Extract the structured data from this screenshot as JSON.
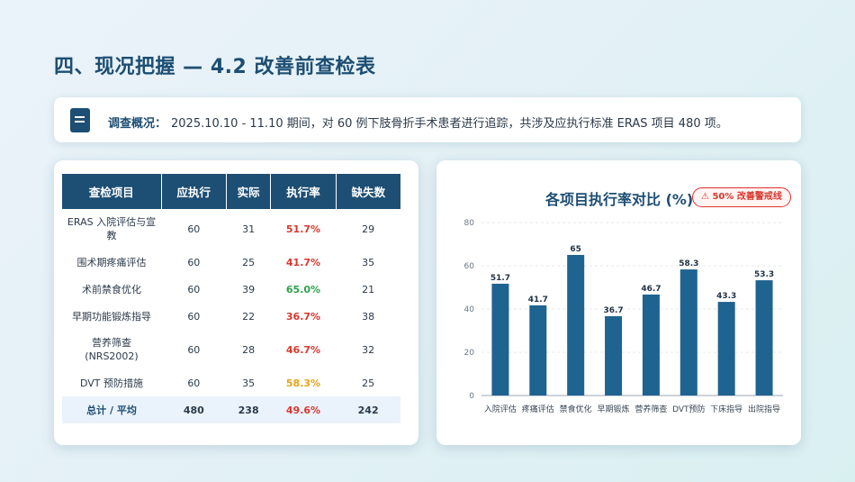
{
  "page": {
    "title": "四、现况把握 — 4.2  改善前查检表"
  },
  "summary": {
    "label": "调查概况：",
    "text": "2025.10.10 - 11.10  期间，对 60 例下肢骨折手术患者进行追踪，共涉及应执行标准 ERAS 项目  480  项。"
  },
  "table": {
    "headers": [
      "查检项目",
      "应执行",
      "实际",
      "执行率",
      "缺失数"
    ],
    "rows": [
      {
        "item": "ERAS 入院评估与宣教",
        "planned": "60",
        "actual": "31",
        "rate": "51.7%",
        "missing": "29",
        "rate_color": "#d9382e"
      },
      {
        "item": "围术期疼痛评估",
        "planned": "60",
        "actual": "25",
        "rate": "41.7%",
        "missing": "35",
        "rate_color": "#d9382e"
      },
      {
        "item": "术前禁食优化",
        "planned": "60",
        "actual": "39",
        "rate": "65.0%",
        "missing": "21",
        "rate_color": "#2fa34a"
      },
      {
        "item": "早期功能锻炼指导",
        "planned": "60",
        "actual": "22",
        "rate": "36.7%",
        "missing": "38",
        "rate_color": "#d9382e"
      },
      {
        "item": "营养筛查 (NRS2002)",
        "planned": "60",
        "actual": "28",
        "rate": "46.7%",
        "missing": "32",
        "rate_color": "#d9382e"
      },
      {
        "item": "DVT 预防措施",
        "planned": "60",
        "actual": "35",
        "rate": "58.3%",
        "missing": "25",
        "rate_color": "#e8a317"
      }
    ],
    "total": {
      "item": "总计 / 平均",
      "planned": "480",
      "actual": "238",
      "rate": "49.6%",
      "missing": "242"
    }
  },
  "chart_card": {
    "title": "各项目执行率对比 (%)",
    "warning": "⚠ 50%  改善警戒线"
  },
  "chart_data": {
    "type": "bar",
    "title": "各项目执行率对比 (%)",
    "categories": [
      "入院评估",
      "疼痛评估",
      "禁食优化",
      "早期锻炼",
      "营养筛查",
      "DVT预防",
      "下床指导",
      "出院指导"
    ],
    "values": [
      51.7,
      41.7,
      65,
      36.7,
      46.7,
      58.3,
      43.3,
      53.3
    ],
    "value_labels": [
      "51.7",
      "41.7",
      "65",
      "36.7",
      "46.7",
      "58.3",
      "43.3",
      "53.3"
    ],
    "yticks": [
      "0",
      "20",
      "40",
      "60",
      "80"
    ],
    "ylim": [
      0,
      80
    ],
    "grid": true,
    "bar_color": "#1f6391",
    "annotation": "⚠ 50%  改善警戒线"
  }
}
